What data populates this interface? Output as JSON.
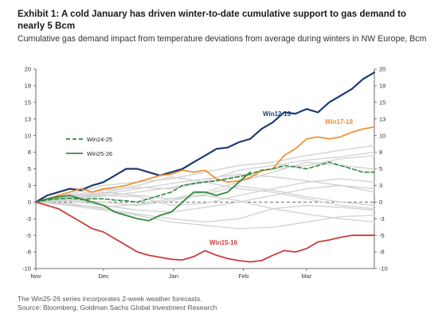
{
  "header": {
    "title": "Exhibit 1: A cold January has driven winter-to-date cumulative support to gas demand to nearly 5 Bcm",
    "subtitle": "Cumulative gas demand impact from temperature deviations from average during winters in NW Europe, Bcm"
  },
  "footer": {
    "note": "The Win25-26 series incorporates 2-week weather forecasts.",
    "source": "Source: Bloomberg, Goldman Sachs Global Investment Research"
  },
  "chart_data": {
    "type": "line",
    "title": "",
    "xlabel": "",
    "ylabel": "",
    "x_unit": "days since start of Nov",
    "x_ticks": [
      {
        "label": "Nov",
        "x": 0
      },
      {
        "label": "Dec",
        "x": 30
      },
      {
        "label": "Jan",
        "x": 61
      },
      {
        "label": "Feb",
        "x": 92
      },
      {
        "label": "Mar",
        "x": 120
      }
    ],
    "xlim": [
      0,
      150
    ],
    "ylim": [
      -10,
      20
    ],
    "y_ticks_left": [
      "20",
      "18",
      "15",
      "13",
      "10",
      "8",
      "5",
      "3",
      "0",
      "-3",
      "-5",
      "-8",
      "-10"
    ],
    "y_ticks_right": [
      "20",
      "18",
      "15",
      "13",
      "10",
      "8",
      "5",
      "3",
      "0",
      "-3",
      "-5",
      "-8",
      "-10"
    ],
    "y_tick_values": [
      20,
      17.5,
      15,
      12.5,
      10,
      7.5,
      5,
      2.5,
      0,
      -2.5,
      -5,
      -7.5,
      -10
    ],
    "grid": false,
    "zero_line": {
      "style": "dashed",
      "color": "#555555"
    },
    "legend": {
      "placement": "left-middle",
      "entries": [
        {
          "label": "Win24-25",
          "color": "#2e8b3e",
          "dash": true
        },
        {
          "label": "Win25-26",
          "color": "#2e8b3e",
          "dash": false
        }
      ]
    },
    "series": [
      {
        "name": "Win12-13",
        "color": "#1f3b73",
        "width": 2.2,
        "label": "Win12-13",
        "x": [
          0,
          5,
          10,
          15,
          20,
          25,
          30,
          35,
          40,
          45,
          50,
          55,
          60,
          65,
          70,
          75,
          80,
          85,
          90,
          95,
          100,
          105,
          110,
          115,
          120,
          125,
          130,
          135,
          140,
          145,
          150
        ],
        "y": [
          0,
          1,
          1.5,
          2,
          1.8,
          2.5,
          3,
          4,
          5,
          5,
          4.5,
          4,
          4.5,
          5,
          6,
          7,
          8,
          8.2,
          9,
          9.5,
          11,
          12,
          13.5,
          13.3,
          14,
          13.5,
          15,
          16,
          17,
          18.5,
          19.5
        ]
      },
      {
        "name": "Win17-18",
        "color": "#f28c28",
        "width": 1.7,
        "label": "Win17-18",
        "x": [
          0,
          5,
          10,
          15,
          20,
          25,
          30,
          35,
          40,
          45,
          50,
          55,
          60,
          65,
          70,
          75,
          80,
          85,
          90,
          95,
          100,
          105,
          110,
          115,
          120,
          125,
          130,
          135,
          140,
          145,
          150
        ],
        "y": [
          0,
          0.5,
          1,
          1.5,
          2,
          1.5,
          2,
          2.2,
          2.5,
          3,
          3.5,
          4,
          4.2,
          4.8,
          4.5,
          4.8,
          3.5,
          3,
          3.2,
          3.7,
          4.7,
          5,
          7,
          8,
          9.5,
          9.8,
          9.5,
          9.8,
          10.5,
          11,
          11.3
        ]
      },
      {
        "name": "Win24-25",
        "color": "#2e8b3e",
        "width": 1.6,
        "dash": "5,3",
        "x": [
          0,
          5,
          10,
          15,
          20,
          25,
          30,
          35,
          40,
          45,
          50,
          55,
          60,
          65,
          70,
          75,
          80,
          85,
          90,
          95,
          100,
          105,
          110,
          115,
          120,
          125,
          130,
          135,
          140,
          145,
          150
        ],
        "y": [
          0,
          0.3,
          0.5,
          0.6,
          0.4,
          0.5,
          0.5,
          0.3,
          0.2,
          0,
          0.5,
          1,
          1.5,
          2.5,
          2.8,
          3,
          3.2,
          3.5,
          3.8,
          4.2,
          4.8,
          5,
          5.5,
          5.3,
          5,
          5.5,
          6,
          5.5,
          5,
          4.5,
          4.5
        ]
      },
      {
        "name": "Win25-26",
        "color": "#2e8b3e",
        "width": 1.8,
        "x": [
          0,
          5,
          10,
          15,
          20,
          25,
          30,
          35,
          40,
          45,
          50,
          55,
          60,
          65,
          70,
          75,
          80,
          85,
          90,
          95
        ],
        "y": [
          0,
          0.5,
          0.8,
          1,
          0.5,
          0,
          -0.5,
          -1.5,
          -2,
          -2.5,
          -2.8,
          -2,
          -1.5,
          0,
          1.5,
          1.5,
          1,
          1.5,
          3,
          4.5
        ]
      },
      {
        "name": "Win15-16",
        "color": "#c93c3c",
        "width": 1.8,
        "label": "Win15-16",
        "x": [
          0,
          5,
          10,
          15,
          20,
          25,
          30,
          35,
          40,
          45,
          50,
          55,
          60,
          65,
          70,
          75,
          80,
          85,
          90,
          95,
          100,
          105,
          110,
          115,
          120,
          125,
          130,
          135,
          140,
          145,
          150
        ],
        "y": [
          0,
          -0.5,
          -1,
          -2,
          -3,
          -4,
          -4.5,
          -5.5,
          -6.5,
          -7.5,
          -8,
          -8.3,
          -8.6,
          -8.7,
          -8.2,
          -7.3,
          -8,
          -8.5,
          -8.8,
          -9,
          -8.8,
          -8,
          -7.3,
          -7.5,
          -7,
          -6,
          -5.7,
          -5.3,
          -5,
          -5,
          -5
        ]
      },
      {
        "name": "",
        "color": "#d3d3d3",
        "width": 1.4,
        "x": [
          0,
          15,
          30,
          45,
          60,
          75,
          90,
          105,
          120,
          135,
          150
        ],
        "y": [
          0,
          1.2,
          2.5,
          3,
          3.5,
          4.5,
          5.5,
          6,
          7,
          7.8,
          8.5
        ]
      },
      {
        "name": "",
        "color": "#d3d3d3",
        "width": 1.4,
        "x": [
          0,
          15,
          30,
          45,
          60,
          75,
          90,
          105,
          120,
          135,
          150
        ],
        "y": [
          0,
          1,
          1.8,
          2.2,
          2,
          3,
          4,
          5,
          5.5,
          6.5,
          7
        ]
      },
      {
        "name": "",
        "color": "#d3d3d3",
        "width": 1.4,
        "x": [
          0,
          15,
          30,
          45,
          60,
          75,
          90,
          105,
          120,
          135,
          150
        ],
        "y": [
          0,
          0.8,
          1.5,
          1,
          0.5,
          1.5,
          3,
          4.5,
          6,
          5.5,
          5
        ]
      },
      {
        "name": "",
        "color": "#d3d3d3",
        "width": 1.4,
        "x": [
          0,
          15,
          30,
          45,
          60,
          75,
          90,
          105,
          120,
          135,
          150
        ],
        "y": [
          0,
          0.5,
          1,
          0.8,
          -0.5,
          -0.2,
          1,
          2,
          3,
          3.5,
          3
        ]
      },
      {
        "name": "",
        "color": "#d3d3d3",
        "width": 1.4,
        "x": [
          0,
          15,
          30,
          45,
          60,
          75,
          90,
          105,
          120,
          135,
          150
        ],
        "y": [
          0,
          0.2,
          -0.5,
          -1.2,
          -1.5,
          -0.8,
          0,
          1,
          2,
          2.5,
          2
        ]
      },
      {
        "name": "",
        "color": "#d3d3d3",
        "width": 1.4,
        "x": [
          0,
          15,
          30,
          45,
          60,
          75,
          90,
          105,
          120,
          135,
          150
        ],
        "y": [
          0,
          -0.2,
          -1,
          -1.8,
          -2.5,
          -3,
          -2.5,
          -1,
          -0.5,
          -0.8,
          -1.2
        ]
      },
      {
        "name": "",
        "color": "#d3d3d3",
        "width": 1.4,
        "x": [
          0,
          15,
          30,
          45,
          60,
          75,
          90,
          105,
          120,
          135,
          150
        ],
        "y": [
          0,
          -0.5,
          -1.2,
          -2,
          -3,
          -3.5,
          -4,
          -3.8,
          -3,
          -2.2,
          -2
        ]
      },
      {
        "name": "",
        "color": "#d3d3d3",
        "width": 1.4,
        "x": [
          0,
          15,
          30,
          45,
          60,
          75,
          90,
          105,
          120,
          135,
          150
        ],
        "y": [
          0,
          0.6,
          1.4,
          2.5,
          3.8,
          3,
          2,
          1.5,
          0.5,
          -0.5,
          -1
        ]
      },
      {
        "name": "",
        "color": "#d3d3d3",
        "width": 1.4,
        "x": [
          0,
          15,
          30,
          45,
          60,
          75,
          90,
          105,
          120,
          135,
          150
        ],
        "y": [
          0,
          0.3,
          0,
          -0.5,
          0.2,
          1.2,
          2.4,
          1.8,
          0.8,
          0,
          -0.5
        ]
      },
      {
        "name": "",
        "color": "#d3d3d3",
        "width": 1.4,
        "x": [
          0,
          15,
          30,
          45,
          60,
          75,
          90,
          105,
          120,
          135,
          150
        ],
        "y": [
          0,
          0.5,
          1.2,
          2,
          2.8,
          3.5,
          4.2,
          3.8,
          3.2,
          2.5,
          1.5
        ]
      },
      {
        "name": "",
        "color": "#d3d3d3",
        "width": 1.4,
        "x": [
          0,
          15,
          30,
          45,
          60,
          75,
          90,
          105,
          120,
          135,
          150
        ],
        "y": [
          0,
          -0.4,
          -0.8,
          -0.3,
          0.5,
          1,
          0.2,
          -1,
          -1.8,
          -2.5,
          -3
        ]
      },
      {
        "name": "",
        "color": "#d3d3d3",
        "width": 1.4,
        "x": [
          0,
          15,
          30,
          45,
          60,
          75,
          90,
          105,
          120,
          135,
          150
        ],
        "y": [
          0,
          0.4,
          0.9,
          1.5,
          2.2,
          3.2,
          4.8,
          5.5,
          6.3,
          6.8,
          7.5
        ]
      }
    ]
  }
}
